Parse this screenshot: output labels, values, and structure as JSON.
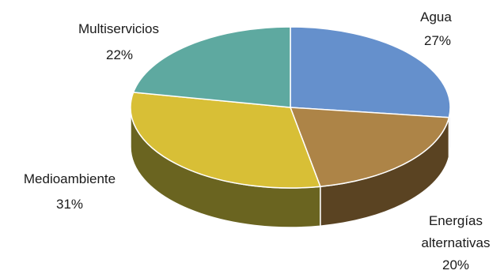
{
  "chart_data": {
    "type": "pie",
    "style": "3d",
    "slices": [
      {
        "name": "Agua",
        "value": 27,
        "label": "27%",
        "color": "#6590cc",
        "side_color": "#3c5f91"
      },
      {
        "name": "Energías alternativas",
        "name_lines": [
          "Energías",
          "alternativas"
        ],
        "value": 20,
        "label": "20%",
        "color": "#ad8447",
        "side_color": "#5a4322"
      },
      {
        "name": "Medioambiente",
        "value": 31,
        "label": "31%",
        "color": "#d8bf36",
        "side_color": "#6a6420"
      },
      {
        "name": "Multiservicios",
        "value": 22,
        "label": "22%",
        "color": "#5ea9a0",
        "side_color": "#3a6f69"
      }
    ]
  }
}
